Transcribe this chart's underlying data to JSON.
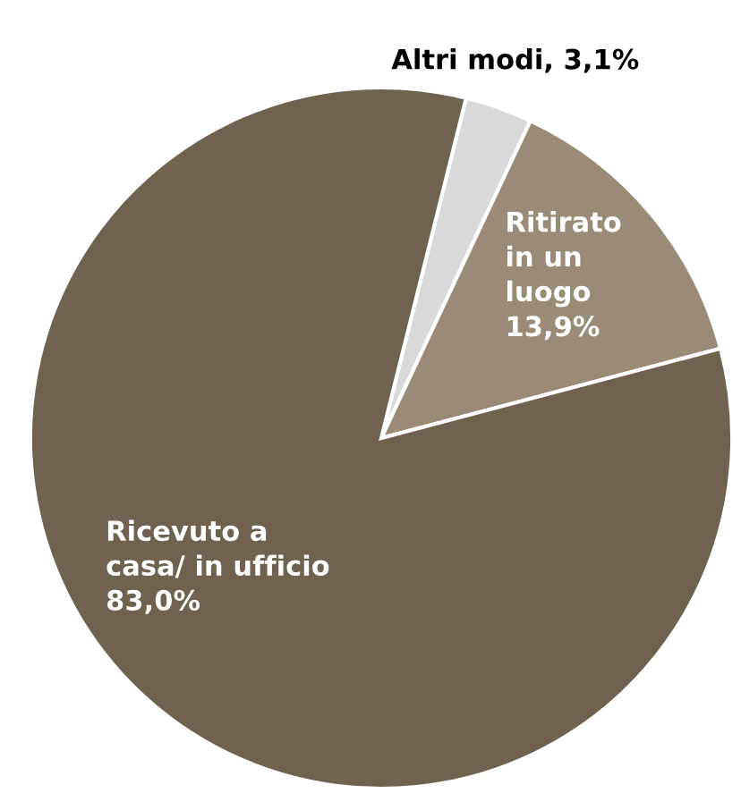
{
  "chart_data": {
    "type": "pie",
    "categories": [
      "Altri modi",
      "Ritirato\nin un\nluogo",
      "Ricevuto a\ncasa/ in ufficio"
    ],
    "values": [
      3.1,
      13.9,
      83.0
    ],
    "value_labels": [
      "3,1%",
      "13,9%",
      "83,0%"
    ],
    "colors": [
      "#d9d9d9",
      "#9a8b78",
      "#706251"
    ],
    "legend": false
  }
}
